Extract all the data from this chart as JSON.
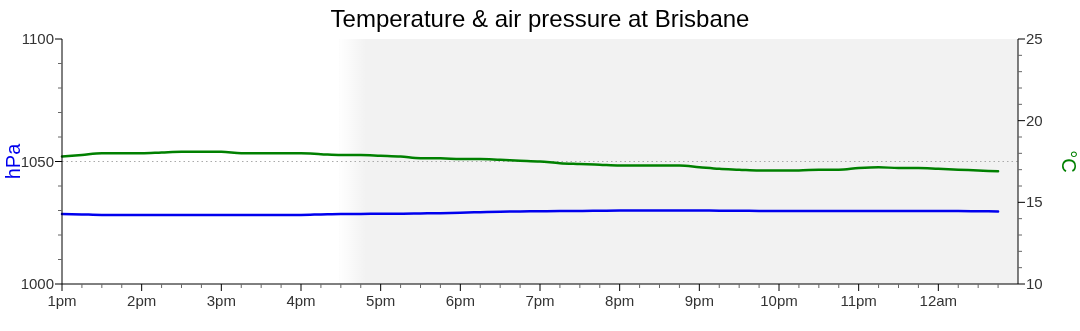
{
  "chart_data": {
    "type": "line",
    "title": "Temperature & air pressure at Brisbane",
    "ylabel": "hPa",
    "y2label": "°C",
    "categories": [
      "1pm",
      null,
      null,
      null,
      "2pm",
      null,
      null,
      null,
      "3pm",
      null,
      null,
      null,
      "4pm",
      null,
      null,
      null,
      "5pm",
      null,
      null,
      null,
      "6pm",
      null,
      null,
      null,
      "7pm",
      null,
      null,
      null,
      "8pm",
      null,
      null,
      null,
      "9pm",
      null,
      null,
      null,
      "10pm",
      null,
      null,
      null,
      "11pm",
      null,
      null,
      null,
      "12am",
      null,
      null,
      null
    ],
    "ylim": [
      1000,
      1100
    ],
    "yticks": [
      1000,
      1050,
      1100,
      {
        "value": 1010,
        "label": null
      },
      {
        "value": 1020,
        "label": null
      },
      {
        "value": 1030,
        "label": null
      },
      {
        "value": 1040,
        "label": null
      },
      {
        "value": 1060,
        "label": null
      },
      {
        "value": 1070,
        "label": null
      },
      {
        "value": 1080,
        "label": null
      },
      {
        "value": 1090,
        "label": null
      }
    ],
    "y2lim": [
      10,
      25
    ],
    "y2ticks": [
      10,
      15,
      20,
      25,
      {
        "value": 11,
        "label": null
      },
      {
        "value": 12,
        "label": null
      },
      {
        "value": 13,
        "label": null
      },
      {
        "value": 14,
        "label": null
      },
      {
        "value": 16,
        "label": null
      },
      {
        "value": 17,
        "label": null
      },
      {
        "value": 18,
        "label": null
      },
      {
        "value": 19,
        "label": null
      },
      {
        "value": 21,
        "label": null
      },
      {
        "value": 22,
        "label": null
      },
      {
        "value": 23,
        "label": null
      },
      {
        "value": 24,
        "label": null
      }
    ],
    "series": [
      {
        "color": "#0000ee",
        "values": [
          1028.6,
          1028.4,
          1028.2,
          1028.2,
          1028.2,
          1028.2,
          1028.2,
          1028.2,
          1028.2,
          1028.2,
          1028.2,
          1028.2,
          1028.2,
          1028.4,
          1028.6,
          1028.6,
          1028.7,
          1028.7,
          1028.8,
          1028.9,
          1029.1,
          1029.3,
          1029.5,
          1029.6,
          1029.7,
          1029.8,
          1029.8,
          1029.9,
          1030.0,
          1030.0,
          1030.0,
          1030.0,
          1030.0,
          1029.9,
          1029.9,
          1029.8,
          1029.8,
          1029.8,
          1029.8,
          1029.8,
          1029.8,
          1029.8,
          1029.8,
          1029.8,
          1029.8,
          1029.8,
          1029.7,
          1029.6
        ]
      },
      {
        "axis": "y2",
        "color": "#008000",
        "values": [
          17.8,
          17.9,
          18.0,
          18.0,
          18.0,
          18.05,
          18.1,
          18.1,
          18.1,
          18.0,
          18.0,
          18.0,
          18.0,
          17.95,
          17.9,
          17.9,
          17.85,
          17.8,
          17.7,
          17.7,
          17.65,
          17.65,
          17.6,
          17.55,
          17.5,
          17.4,
          17.35,
          17.3,
          17.25,
          17.25,
          17.25,
          17.25,
          17.15,
          17.05,
          17.0,
          16.95,
          16.95,
          16.95,
          17.0,
          17.0,
          17.1,
          17.15,
          17.1,
          17.1,
          17.05,
          17.0,
          16.95,
          16.9
        ]
      }
    ],
    "ref_lines": [
      {
        "axis": "y",
        "value": 1050,
        "color": "#aaaaaa",
        "line_style": "dotted"
      }
    ],
    "line_style": "solid",
    "marker": "none",
    "grid": false
  }
}
